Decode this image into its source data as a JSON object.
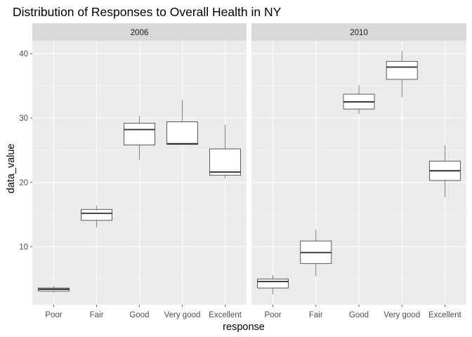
{
  "chart_data": {
    "type": "boxplot",
    "title": "Distribution of Responses to Overall Health in NY",
    "xlabel": "response",
    "ylabel": "data_value",
    "ylim": [
      1,
      42
    ],
    "yticks": [
      10,
      20,
      30,
      40
    ],
    "categories": [
      "Poor",
      "Fair",
      "Good",
      "Very good",
      "Excellent"
    ],
    "grid": true,
    "colors": {
      "panel_bg": "#ebebeb",
      "strip_bg": "#d9d9d9",
      "grid_major": "#ffffff",
      "box_fill": "#ffffff",
      "box_line": "#333333"
    },
    "facets": [
      {
        "label": "2006",
        "boxes": [
          {
            "category": "Poor",
            "whisker_low": 2.9,
            "q1": 3.1,
            "median": 3.4,
            "q3": 3.6,
            "whisker_high": 3.9
          },
          {
            "category": "Fair",
            "whisker_low": 13.0,
            "q1": 14.1,
            "median": 15.2,
            "q3": 15.8,
            "whisker_high": 16.4
          },
          {
            "category": "Good",
            "whisker_low": 23.5,
            "q1": 25.8,
            "median": 28.2,
            "q3": 29.2,
            "whisker_high": 30.3
          },
          {
            "category": "Very good",
            "whisker_low": 25.9,
            "q1": 25.9,
            "median": 26.0,
            "q3": 29.4,
            "whisker_high": 32.8
          },
          {
            "category": "Excellent",
            "whisker_low": 20.6,
            "q1": 21.1,
            "median": 21.6,
            "q3": 25.2,
            "whisker_high": 28.9
          }
        ]
      },
      {
        "label": "2010",
        "boxes": [
          {
            "category": "Poor",
            "whisker_low": 2.6,
            "q1": 3.6,
            "median": 4.6,
            "q3": 5.0,
            "whisker_high": 5.6
          },
          {
            "category": "Fair",
            "whisker_low": 5.4,
            "q1": 7.4,
            "median": 9.1,
            "q3": 10.9,
            "whisker_high": 12.7
          },
          {
            "category": "Good",
            "whisker_low": 30.6,
            "q1": 31.4,
            "median": 32.5,
            "q3": 33.7,
            "whisker_high": 35.1
          },
          {
            "category": "Very good",
            "whisker_low": 33.2,
            "q1": 36.0,
            "median": 37.9,
            "q3": 38.8,
            "whisker_high": 40.4
          },
          {
            "category": "Excellent",
            "whisker_low": 17.7,
            "q1": 20.3,
            "median": 21.8,
            "q3": 23.3,
            "whisker_high": 25.8
          }
        ]
      }
    ]
  }
}
